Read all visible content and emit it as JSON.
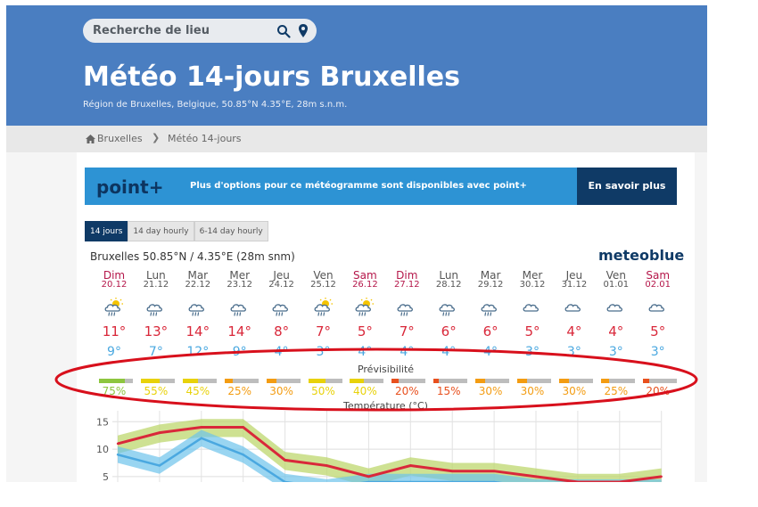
{
  "search": {
    "placeholder": "Recherche de lieu"
  },
  "header": {
    "title": "Météo 14-jours Bruxelles",
    "subtitle": "Région de Bruxelles, Belgique, 50.85°N 4.35°E, 28m s.n.m."
  },
  "breadcrumb": {
    "home": "Bruxelles",
    "current": "Météo 14-jours"
  },
  "banner": {
    "logo": "point+",
    "message": "Plus d'options pour ce météogramme sont disponibles avec point+",
    "button": "En savoir plus"
  },
  "tabs": [
    {
      "label": "14 jours",
      "active": true
    },
    {
      "label": "14 day hourly",
      "active": false
    },
    {
      "label": "6-14 day hourly",
      "active": false
    }
  ],
  "location_line": "Bruxelles  50.85°N / 4.35°E (28m snm)",
  "brand": "meteoblue",
  "predictability_label": "Prévisibilité",
  "temperature_label": "Température (°C)",
  "days": [
    {
      "name": "Dim",
      "date": "20.12",
      "weekend": true,
      "icon": "sun-cloud-rain-icon",
      "tmax": "11°",
      "tmin": "9°",
      "pct": "75%",
      "level": 0.75,
      "color": "#8dc63f"
    },
    {
      "name": "Lun",
      "date": "21.12",
      "weekend": false,
      "icon": "cloud-rain-icon",
      "tmax": "13°",
      "tmin": "7°",
      "pct": "55%",
      "level": 0.55,
      "color": "#e8d20a"
    },
    {
      "name": "Mar",
      "date": "22.12",
      "weekend": false,
      "icon": "cloud-rain-icon",
      "tmax": "14°",
      "tmin": "12°",
      "pct": "45%",
      "level": 0.45,
      "color": "#e8d20a"
    },
    {
      "name": "Mer",
      "date": "23.12",
      "weekend": false,
      "icon": "cloud-rain-icon",
      "tmax": "14°",
      "tmin": "9°",
      "pct": "25%",
      "level": 0.25,
      "color": "#f39c12"
    },
    {
      "name": "Jeu",
      "date": "24.12",
      "weekend": false,
      "icon": "cloud-rain-icon",
      "tmax": "8°",
      "tmin": "4°",
      "pct": "30%",
      "level": 0.3,
      "color": "#f39c12"
    },
    {
      "name": "Ven",
      "date": "25.12",
      "weekend": false,
      "icon": "sun-cloud-rain-icon",
      "tmax": "7°",
      "tmin": "3°",
      "pct": "50%",
      "level": 0.5,
      "color": "#e8d20a"
    },
    {
      "name": "Sam",
      "date": "26.12",
      "weekend": true,
      "icon": "sun-cloud-rain-icon",
      "tmax": "5°",
      "tmin": "4°",
      "pct": "40%",
      "level": 0.4,
      "color": "#e8d20a"
    },
    {
      "name": "Dim",
      "date": "27.12",
      "weekend": true,
      "icon": "cloud-rain-icon",
      "tmax": "7°",
      "tmin": "4°",
      "pct": "20%",
      "level": 0.2,
      "color": "#e8501e"
    },
    {
      "name": "Lun",
      "date": "28.12",
      "weekend": false,
      "icon": "cloud-rain-icon",
      "tmax": "6°",
      "tmin": "4°",
      "pct": "15%",
      "level": 0.15,
      "color": "#e8501e"
    },
    {
      "name": "Mar",
      "date": "29.12",
      "weekend": false,
      "icon": "cloud-rain-icon",
      "tmax": "6°",
      "tmin": "4°",
      "pct": "30%",
      "level": 0.3,
      "color": "#f39c12"
    },
    {
      "name": "Mer",
      "date": "30.12",
      "weekend": false,
      "icon": "cloud-icon",
      "tmax": "5°",
      "tmin": "3°",
      "pct": "30%",
      "level": 0.3,
      "color": "#f39c12"
    },
    {
      "name": "Jeu",
      "date": "31.12",
      "weekend": false,
      "icon": "cloud-icon",
      "tmax": "4°",
      "tmin": "3°",
      "pct": "30%",
      "level": 0.3,
      "color": "#f39c12"
    },
    {
      "name": "Ven",
      "date": "01.01",
      "weekend": false,
      "icon": "cloud-icon",
      "tmax": "4°",
      "tmin": "3°",
      "pct": "25%",
      "level": 0.25,
      "color": "#f39c12"
    },
    {
      "name": "Sam",
      "date": "02.01",
      "weekend": true,
      "icon": "cloud-icon",
      "tmax": "5°",
      "tmin": "3°",
      "pct": "20%",
      "level": 0.2,
      "color": "#e8501e"
    }
  ],
  "chart_data": {
    "type": "line",
    "title": "Température (°C)",
    "ylim": [
      4,
      17
    ],
    "yticks": [
      "15",
      "10",
      "5"
    ],
    "ytick_values": [
      15,
      10,
      5
    ],
    "categories": [
      "20.12",
      "21.12",
      "22.12",
      "23.12",
      "24.12",
      "25.12",
      "26.12",
      "27.12",
      "28.12",
      "29.12",
      "30.12",
      "31.12",
      "01.01",
      "02.01"
    ],
    "series": [
      {
        "values": [
          11,
          13,
          14,
          14,
          8,
          7,
          5,
          7,
          6,
          6,
          5,
          4,
          4,
          5
        ],
        "color": "#d9283a"
      },
      {
        "values": [
          9,
          7,
          12,
          9,
          4,
          3,
          4,
          4,
          4,
          4,
          3,
          3,
          3,
          3
        ],
        "color": "#4aa8e0"
      }
    ],
    "grid": true
  },
  "colors": {
    "header": "#4a7ec1",
    "weekend": "#b5174a",
    "weekday": "#555555",
    "tmax": "#d9283a",
    "tmin": "#4aa8e0",
    "annotation": "#d8101c"
  }
}
